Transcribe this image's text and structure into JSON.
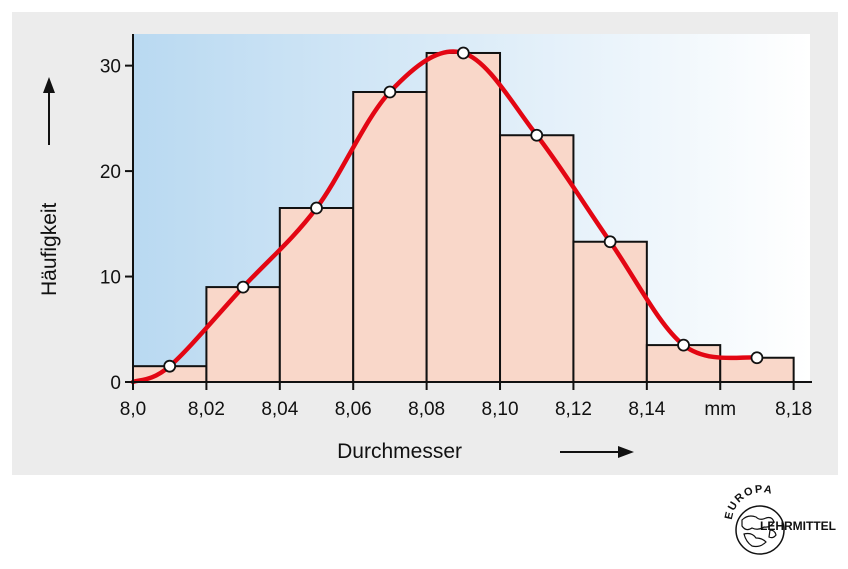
{
  "chart_data": {
    "type": "bar",
    "bin_edges": [
      8.0,
      8.02,
      8.04,
      8.06,
      8.08,
      8.1,
      8.12,
      8.14,
      8.16,
      8.18
    ],
    "values": [
      1.5,
      9,
      16.5,
      27.5,
      31.2,
      23.4,
      13.3,
      3.5,
      2.3
    ],
    "curve_points": {
      "x": [
        8.01,
        8.03,
        8.05,
        8.07,
        8.09,
        8.11,
        8.13,
        8.15,
        8.17
      ],
      "y": [
        1.5,
        9,
        16.5,
        27.5,
        31.2,
        23.4,
        13.3,
        3.5,
        2.3
      ]
    },
    "xlabel": "Durchmesser",
    "ylabel": "Häufigkeit",
    "x_ticks": [
      "8,0",
      "8,02",
      "8,04",
      "8,06",
      "8,08",
      "8,10",
      "8,12",
      "8,14",
      "mm",
      "8,18"
    ],
    "y_ticks": [
      "0",
      "10",
      "20",
      "30"
    ],
    "xlim": [
      8.0,
      8.185
    ],
    "ylim": [
      0,
      33
    ],
    "grid": false,
    "colors": {
      "bar_fill": "#f9d7c9",
      "bar_stroke": "#111111",
      "curve": "#e30613",
      "background_gradient": [
        "#b9d9f1",
        "#ffffff"
      ]
    }
  },
  "logo": {
    "top_text": "EUROPA",
    "side_text": "LEHRMITTEL"
  }
}
